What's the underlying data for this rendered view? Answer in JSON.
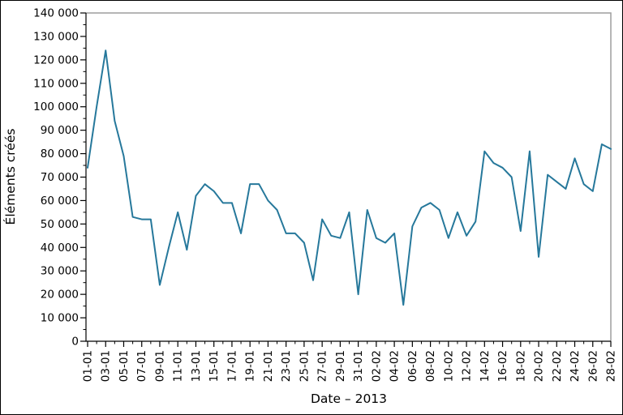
{
  "chart_data": {
    "type": "line",
    "title": "",
    "xlabel": "Date – 2013",
    "ylabel": "Éléments créés",
    "line_color": "#26789b",
    "axis_color": "#000000",
    "box_color": "#9e9e9e",
    "background": "#ffffff",
    "grid": false,
    "legend": false,
    "ylim": [
      0,
      140000
    ],
    "y_major_step": 10000,
    "y_minor_step": 5000,
    "y_tick_labels": [
      "0",
      "10 000",
      "20 000",
      "30 000",
      "40 000",
      "50 000",
      "60 000",
      "70 000",
      "80 000",
      "90 000",
      "100 000",
      "110 000",
      "120 000",
      "130 000",
      "140 000"
    ],
    "x_tick_label_every": 2,
    "x": [
      "01-01",
      "02-01",
      "03-01",
      "04-01",
      "05-01",
      "06-01",
      "07-01",
      "08-01",
      "09-01",
      "10-01",
      "11-01",
      "12-01",
      "13-01",
      "14-01",
      "15-01",
      "16-01",
      "17-01",
      "18-01",
      "19-01",
      "20-01",
      "21-01",
      "22-01",
      "23-01",
      "24-01",
      "25-01",
      "26-01",
      "27-01",
      "28-01",
      "29-01",
      "30-01",
      "31-01",
      "01-02",
      "02-02",
      "03-02",
      "04-02",
      "05-02",
      "06-02",
      "07-02",
      "08-02",
      "09-02",
      "10-02",
      "11-02",
      "12-02",
      "13-02",
      "14-02",
      "15-02",
      "16-02",
      "17-02",
      "18-02",
      "19-02",
      "20-02",
      "21-02",
      "22-02",
      "23-02",
      "24-02",
      "25-02",
      "26-02",
      "27-02",
      "28-02"
    ],
    "values": [
      74000,
      100000,
      124000,
      94000,
      79000,
      53000,
      52000,
      52000,
      24000,
      40000,
      55000,
      39000,
      62000,
      67000,
      64000,
      59000,
      59000,
      46000,
      67000,
      67000,
      60000,
      56000,
      46000,
      46000,
      42000,
      26000,
      52000,
      45000,
      44000,
      55000,
      20000,
      56000,
      44000,
      42000,
      46000,
      15500,
      49000,
      57000,
      59000,
      56000,
      44000,
      55000,
      45000,
      51000,
      81000,
      76000,
      74000,
      70000,
      47000,
      81000,
      36000,
      71000,
      68000,
      65000,
      78000,
      67000,
      64000,
      84000,
      82000
    ]
  }
}
